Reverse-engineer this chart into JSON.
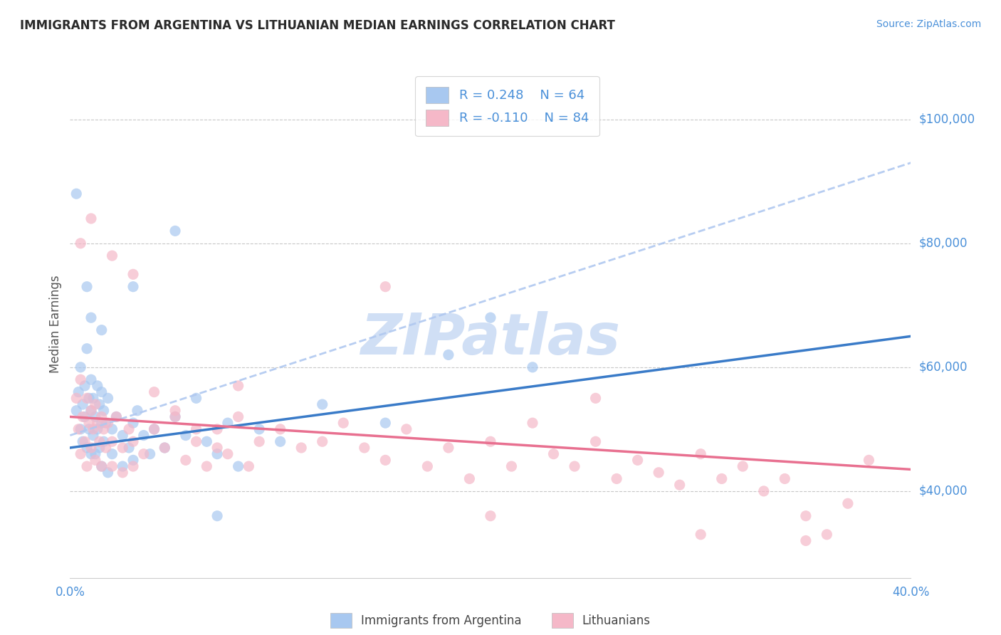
{
  "title": "IMMIGRANTS FROM ARGENTINA VS LITHUANIAN MEDIAN EARNINGS CORRELATION CHART",
  "source": "Source: ZipAtlas.com",
  "ylabel": "Median Earnings",
  "ytick_labels": [
    "$40,000",
    "$60,000",
    "$80,000",
    "$100,000"
  ],
  "ytick_values": [
    40000,
    60000,
    80000,
    100000
  ],
  "xlim": [
    0.0,
    40.0
  ],
  "ylim": [
    26000,
    108000
  ],
  "argentina_color": "#a8c8f0",
  "lithuania_color": "#f5b8c8",
  "argentina_line_color": "#3a7bc8",
  "lithuania_line_color": "#e87090",
  "dashed_line_color": "#b0c8f0",
  "watermark": "ZIPatlas",
  "watermark_color": "#d0dff5",
  "title_color": "#2a2a2a",
  "axis_label_color": "#4a90d9",
  "background_color": "#ffffff",
  "grid_color": "#c8c8c8",
  "argentina_line_x": [
    0.0,
    40.0
  ],
  "argentina_line_y": [
    47000,
    65000
  ],
  "lithuania_line_x": [
    0.0,
    40.0
  ],
  "lithuania_line_y": [
    52000,
    43500
  ],
  "dashed_line_x": [
    0.0,
    40.0
  ],
  "dashed_line_y": [
    49000,
    93000
  ],
  "argentina_points": [
    [
      0.3,
      53000
    ],
    [
      0.4,
      56000
    ],
    [
      0.5,
      60000
    ],
    [
      0.5,
      50000
    ],
    [
      0.6,
      54000
    ],
    [
      0.6,
      48000
    ],
    [
      0.7,
      57000
    ],
    [
      0.7,
      52000
    ],
    [
      0.8,
      63000
    ],
    [
      0.8,
      47000
    ],
    [
      0.9,
      55000
    ],
    [
      0.9,
      50000
    ],
    [
      1.0,
      58000
    ],
    [
      1.0,
      53000
    ],
    [
      1.0,
      46000
    ],
    [
      1.1,
      55000
    ],
    [
      1.1,
      49000
    ],
    [
      1.2,
      52000
    ],
    [
      1.2,
      46000
    ],
    [
      1.3,
      57000
    ],
    [
      1.3,
      50000
    ],
    [
      1.4,
      54000
    ],
    [
      1.4,
      47000
    ],
    [
      1.5,
      56000
    ],
    [
      1.5,
      51000
    ],
    [
      1.5,
      44000
    ],
    [
      1.6,
      53000
    ],
    [
      1.6,
      48000
    ],
    [
      1.7,
      51000
    ],
    [
      1.8,
      55000
    ],
    [
      1.8,
      43000
    ],
    [
      2.0,
      50000
    ],
    [
      2.0,
      46000
    ],
    [
      2.2,
      52000
    ],
    [
      2.5,
      49000
    ],
    [
      2.5,
      44000
    ],
    [
      2.8,
      47000
    ],
    [
      3.0,
      51000
    ],
    [
      3.0,
      45000
    ],
    [
      3.2,
      53000
    ],
    [
      3.5,
      49000
    ],
    [
      3.8,
      46000
    ],
    [
      4.0,
      50000
    ],
    [
      4.5,
      47000
    ],
    [
      5.0,
      52000
    ],
    [
      5.5,
      49000
    ],
    [
      6.0,
      55000
    ],
    [
      6.5,
      48000
    ],
    [
      7.0,
      46000
    ],
    [
      7.5,
      51000
    ],
    [
      0.3,
      88000
    ],
    [
      0.8,
      73000
    ],
    [
      1.0,
      68000
    ],
    [
      1.5,
      66000
    ],
    [
      3.0,
      73000
    ],
    [
      5.0,
      82000
    ],
    [
      7.0,
      36000
    ],
    [
      8.0,
      44000
    ],
    [
      9.0,
      50000
    ],
    [
      10.0,
      48000
    ],
    [
      12.0,
      54000
    ],
    [
      15.0,
      51000
    ],
    [
      18.0,
      62000
    ],
    [
      20.0,
      68000
    ],
    [
      22.0,
      60000
    ]
  ],
  "lithuania_points": [
    [
      0.3,
      55000
    ],
    [
      0.4,
      50000
    ],
    [
      0.5,
      58000
    ],
    [
      0.5,
      46000
    ],
    [
      0.6,
      52000
    ],
    [
      0.7,
      48000
    ],
    [
      0.8,
      55000
    ],
    [
      0.8,
      44000
    ],
    [
      0.9,
      51000
    ],
    [
      1.0,
      53000
    ],
    [
      1.0,
      47000
    ],
    [
      1.1,
      50000
    ],
    [
      1.2,
      54000
    ],
    [
      1.2,
      45000
    ],
    [
      1.3,
      51000
    ],
    [
      1.4,
      48000
    ],
    [
      1.5,
      52000
    ],
    [
      1.5,
      44000
    ],
    [
      1.6,
      50000
    ],
    [
      1.7,
      47000
    ],
    [
      1.8,
      51000
    ],
    [
      2.0,
      48000
    ],
    [
      2.0,
      44000
    ],
    [
      2.2,
      52000
    ],
    [
      2.5,
      47000
    ],
    [
      2.5,
      43000
    ],
    [
      2.8,
      50000
    ],
    [
      3.0,
      48000
    ],
    [
      3.0,
      44000
    ],
    [
      3.5,
      46000
    ],
    [
      4.0,
      50000
    ],
    [
      4.5,
      47000
    ],
    [
      5.0,
      52000
    ],
    [
      5.5,
      45000
    ],
    [
      6.0,
      48000
    ],
    [
      6.5,
      44000
    ],
    [
      7.0,
      50000
    ],
    [
      7.5,
      46000
    ],
    [
      8.0,
      52000
    ],
    [
      8.5,
      44000
    ],
    [
      0.5,
      80000
    ],
    [
      1.0,
      84000
    ],
    [
      2.0,
      78000
    ],
    [
      3.0,
      75000
    ],
    [
      4.0,
      56000
    ],
    [
      5.0,
      53000
    ],
    [
      6.0,
      50000
    ],
    [
      7.0,
      47000
    ],
    [
      8.0,
      57000
    ],
    [
      9.0,
      48000
    ],
    [
      10.0,
      50000
    ],
    [
      11.0,
      47000
    ],
    [
      12.0,
      48000
    ],
    [
      13.0,
      51000
    ],
    [
      14.0,
      47000
    ],
    [
      15.0,
      45000
    ],
    [
      16.0,
      50000
    ],
    [
      17.0,
      44000
    ],
    [
      18.0,
      47000
    ],
    [
      19.0,
      42000
    ],
    [
      20.0,
      48000
    ],
    [
      21.0,
      44000
    ],
    [
      22.0,
      51000
    ],
    [
      23.0,
      46000
    ],
    [
      24.0,
      44000
    ],
    [
      25.0,
      48000
    ],
    [
      26.0,
      42000
    ],
    [
      27.0,
      45000
    ],
    [
      28.0,
      43000
    ],
    [
      29.0,
      41000
    ],
    [
      30.0,
      46000
    ],
    [
      31.0,
      42000
    ],
    [
      32.0,
      44000
    ],
    [
      33.0,
      40000
    ],
    [
      34.0,
      42000
    ],
    [
      35.0,
      36000
    ],
    [
      36.0,
      33000
    ],
    [
      37.0,
      38000
    ],
    [
      38.0,
      45000
    ],
    [
      15.0,
      73000
    ],
    [
      20.0,
      36000
    ],
    [
      25.0,
      55000
    ],
    [
      30.0,
      33000
    ],
    [
      35.0,
      32000
    ]
  ]
}
